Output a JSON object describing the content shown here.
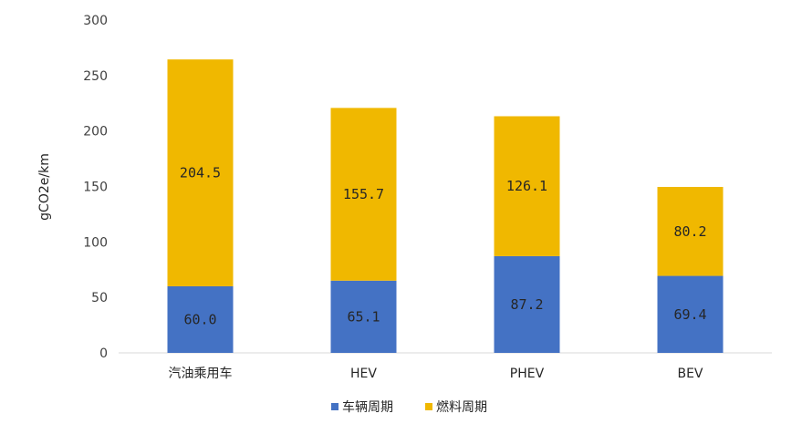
{
  "chart_data": {
    "type": "bar",
    "stacked": true,
    "categories": [
      "汽油乘用车",
      "HEV",
      "PHEV",
      "BEV"
    ],
    "series": [
      {
        "name": "车辆周期",
        "color": "#4472C4",
        "values": [
          60.0,
          65.1,
          87.2,
          69.4
        ]
      },
      {
        "name": "燃料周期",
        "color": "#F0B800",
        "values": [
          204.5,
          155.7,
          126.1,
          80.2
        ]
      }
    ],
    "ylabel": "gCO2e/km",
    "ylim": [
      0,
      300
    ],
    "yticks": [
      0,
      50,
      100,
      150,
      200,
      250,
      300
    ],
    "legend_position": "bottom",
    "grid": false
  }
}
